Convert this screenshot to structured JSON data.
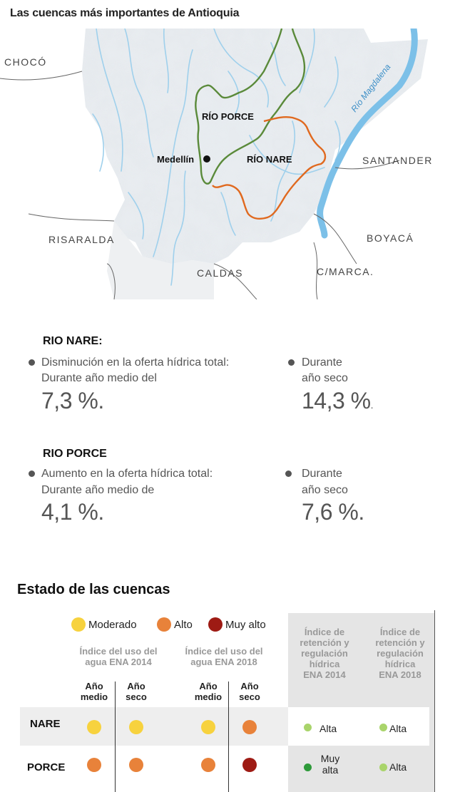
{
  "title": "Las cuencas más importantes de Antioquia",
  "map": {
    "regions": [
      "CHOCÓ",
      "SANTANDER",
      "RISARALDA",
      "BOYACÁ",
      "CALDAS",
      "C/MARCA."
    ],
    "rivers": {
      "porce": "RÍO PORCE",
      "nare": "RÍO NARE",
      "magdalena": "Río Magdalena"
    },
    "city": "Medellín",
    "colors": {
      "porce": "#5a8a3a",
      "nare": "#e0691f",
      "water": "#8fc6e6"
    }
  },
  "nare": {
    "heading": "RIO NARE:",
    "desc": [
      "Disminución en la oferta hídrica total:",
      "Durante año medio del"
    ],
    "medio_value": "7,3 %.",
    "seco_label": [
      "Durante",
      "año seco"
    ],
    "seco_value": "14,3 %",
    "seco_suffix": "."
  },
  "porce": {
    "heading": "RIO PORCE",
    "desc": [
      "Aumento en la oferta hídrica total:",
      "Durante año medio de"
    ],
    "medio_value": "4,1 %.",
    "seco_label": [
      "Durante",
      "año seco"
    ],
    "seco_value": "7,6 %."
  },
  "estado": {
    "title": "Estado de las cuencas",
    "legend": [
      {
        "label": "Moderado",
        "color": "#f7d23e"
      },
      {
        "label": "Alto",
        "color": "#e8823a"
      },
      {
        "label": "Muy alto",
        "color": "#9e1b14"
      }
    ],
    "col_groups": [
      [
        "Índice del uso del",
        "agua ENA 2014"
      ],
      [
        "Índice del uso del",
        "agua ENA 2018"
      ]
    ],
    "sub_cols": [
      [
        "Año",
        "medio"
      ],
      [
        "Año",
        "seco"
      ],
      [
        "Año",
        "medio"
      ],
      [
        "Año",
        "seco"
      ]
    ],
    "retention_heads": [
      [
        "Índice de",
        "retención y",
        "regulación",
        "hídrica",
        "ENA 2014"
      ],
      [
        "Índice de",
        "retención y",
        "regulación",
        "hídrica",
        "ENA 2018"
      ]
    ],
    "rows": [
      {
        "name": "NARE",
        "levels": [
          "Moderado",
          "Moderado",
          "Moderado",
          "Alto"
        ],
        "ret2014": [
          "Alta"
        ],
        "ret2014_color": "#a9d46b",
        "ret2018": [
          "Alta"
        ],
        "ret2018_color": "#a9d46b"
      },
      {
        "name": "PORCE",
        "levels": [
          "Alto",
          "Alto",
          "Alto",
          "Muy alto"
        ],
        "ret2014": [
          "Muy",
          "alta"
        ],
        "ret2014_color": "#2e9a3a",
        "ret2018": [
          "Alta"
        ],
        "ret2018_color": "#a9d46b"
      }
    ],
    "level_colors": {
      "Moderado": "#f7d23e",
      "Alto": "#e8823a",
      "Muy alto": "#9e1b14"
    }
  }
}
